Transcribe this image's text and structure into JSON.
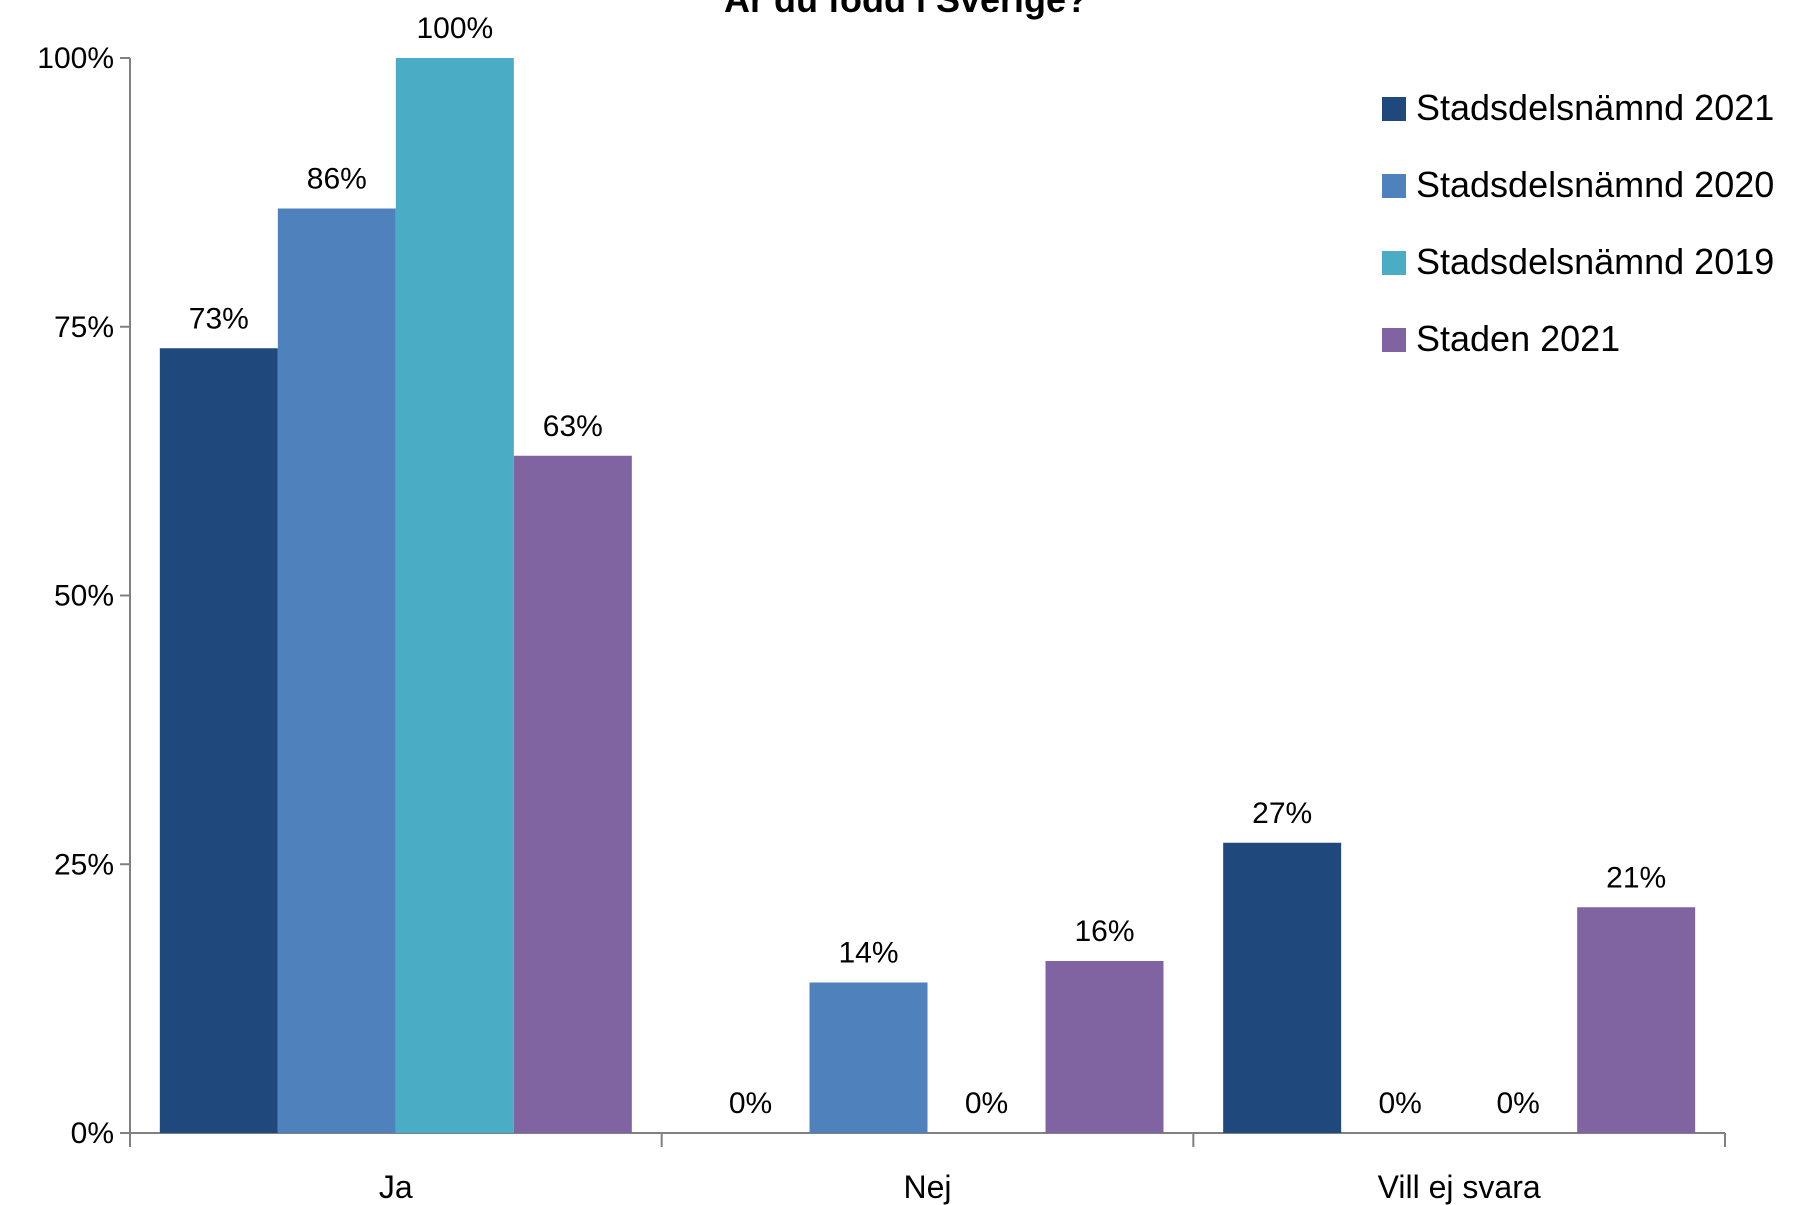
{
  "chart_data": {
    "type": "bar",
    "title": "Är du född i Sverige?",
    "xlabel": "",
    "ylabel": "",
    "categories": [
      "Ja",
      "Nej",
      "Vill ej svara"
    ],
    "ylim": [
      0,
      100
    ],
    "yticks": [
      0,
      25,
      50,
      75,
      100
    ],
    "ytick_labels": [
      "0%",
      "25%",
      "50%",
      "75%",
      "100%"
    ],
    "grid": false,
    "legend_position": "top-right",
    "series": [
      {
        "name": "Stadsdelsnämnd 2021",
        "color": "#1F497D",
        "values": [
          73,
          0,
          27
        ],
        "labels": [
          "73%",
          "0%",
          "27%"
        ]
      },
      {
        "name": "Stadsdelsnämnd 2020",
        "color": "#4F81BD",
        "values": [
          86,
          14,
          0
        ],
        "labels": [
          "86%",
          "14%",
          "0%"
        ]
      },
      {
        "name": "Stadsdelsnämnd 2019",
        "color": "#4BACC6",
        "values": [
          100,
          0,
          0
        ],
        "labels": [
          "100%",
          "0%",
          "0%"
        ]
      },
      {
        "name": "Staden 2021",
        "color": "#8064A2",
        "values": [
          63,
          16,
          21
        ],
        "labels": [
          "63%",
          "16%",
          "21%"
        ]
      }
    ]
  }
}
